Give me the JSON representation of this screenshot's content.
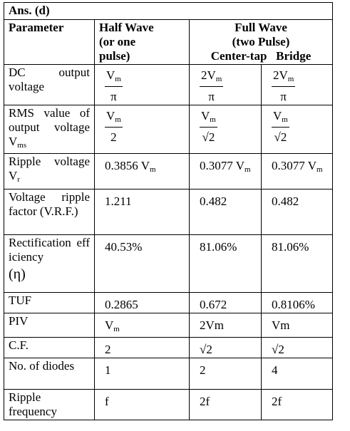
{
  "header": {
    "title": "Ans. (d)"
  },
  "table": {
    "head": {
      "parameter": "Parameter",
      "half_wave": [
        "Half Wave",
        "(or one",
        "pulse)"
      ],
      "full_wave": [
        "Full Wave",
        "(two Pulse)"
      ],
      "center_tap": "Center-tap",
      "bridge": "Bridge"
    },
    "rows": [
      {
        "label": {
          "text": "DC output voltage"
        },
        "cells": [
          {
            "num": "V",
            "sub": "m",
            "den": "π"
          },
          {
            "num": "2V",
            "sub": "m",
            "den": "π"
          },
          {
            "num": "2V",
            "sub": "m",
            "den": "π"
          }
        ]
      },
      {
        "label": {
          "text": "RMS value of output voltage V",
          "sub": "ms"
        },
        "cells": [
          {
            "num": "V",
            "sub": "m",
            "den": "2"
          },
          {
            "num": "V",
            "sub": "m",
            "den": "√2"
          },
          {
            "num": "V",
            "sub": "m",
            "den": "√2"
          }
        ]
      },
      {
        "label": {
          "text": "Ripple voltage V",
          "sub": "r"
        },
        "cells": [
          {
            "text": "0.3856 V",
            "sub": "m"
          },
          {
            "text": "0.3077 V",
            "sub": "m"
          },
          {
            "text": "0.3077 V",
            "sub": "m"
          }
        ]
      },
      {
        "label": {
          "text": "Voltage ripple factor (V.R.F.)"
        },
        "cells": [
          {
            "text": "1.211"
          },
          {
            "text": "0.482"
          },
          {
            "text": "0.482"
          }
        ]
      },
      {
        "label": {
          "text": "Rectification efficiency",
          "extra": "(η)"
        },
        "cells": [
          {
            "text": "40.53%"
          },
          {
            "text": "81.06%"
          },
          {
            "text": "81.06%"
          }
        ]
      },
      {
        "label": {
          "text": "TUF"
        },
        "cells": [
          {
            "text": "0.2865"
          },
          {
            "text": "0.672"
          },
          {
            "text": "0.8106%"
          }
        ]
      },
      {
        "label": {
          "text": "PIV"
        },
        "cells": [
          {
            "text": "V",
            "sub": "m"
          },
          {
            "text": "2Vm"
          },
          {
            "text": "Vm"
          }
        ]
      },
      {
        "label": {
          "text": "C.F."
        },
        "cells": [
          {
            "text": "2"
          },
          {
            "text": "√2"
          },
          {
            "text": "√2"
          }
        ]
      },
      {
        "label": {
          "text": "No. of diodes"
        },
        "cells": [
          {
            "text": "1"
          },
          {
            "text": "2"
          },
          {
            "text": "4"
          }
        ]
      },
      {
        "label": {
          "text": "Ripple frequency"
        },
        "cells": [
          {
            "text": "f"
          },
          {
            "text": "2f"
          },
          {
            "text": "2f"
          }
        ]
      }
    ]
  }
}
